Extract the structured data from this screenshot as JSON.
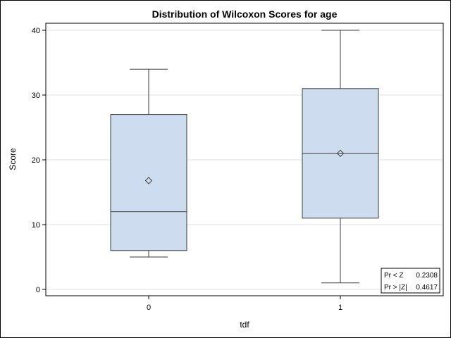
{
  "chart_data": {
    "type": "box",
    "title": "Distribution of Wilcoxon Scores for age",
    "xlabel": "tdf",
    "ylabel": "Score",
    "ylim": [
      -1,
      41
    ],
    "yticks": [
      0,
      10,
      20,
      30,
      40
    ],
    "grid": true,
    "categories": [
      "0",
      "1"
    ],
    "boxes": [
      {
        "category": "0",
        "min": 5,
        "q1": 6,
        "median": 12,
        "q3": 27,
        "max": 34,
        "mean": 16.8
      },
      {
        "category": "1",
        "min": 1,
        "q1": 11,
        "median": 21,
        "q3": 31,
        "max": 40,
        "mean": 21
      }
    ],
    "stats": [
      {
        "label": "Pr < Z",
        "value": "0.2308"
      },
      {
        "label": "Pr > |Z|",
        "value": "0.4617"
      }
    ],
    "colors": {
      "box_fill": "#cddcee",
      "line": "#3b3b3b",
      "grid": "#e1e1e1"
    }
  }
}
